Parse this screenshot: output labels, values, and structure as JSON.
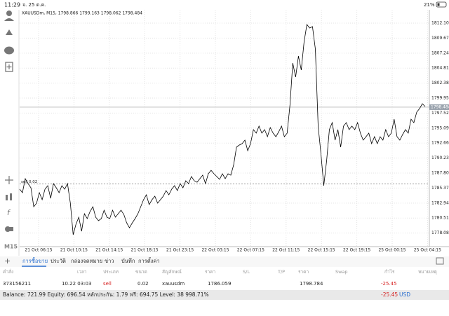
{
  "status_bar": {
    "time": "11:29",
    "date": "จ. 25 ต.ค.",
    "battery": "21%"
  },
  "timeframe": "M15",
  "chart": {
    "type": "line",
    "header": "XAUUSDm, M15, 1798.866 1799.163 1798.062 1798.484",
    "current_price": 1798.484,
    "order_label": "sell 0.02",
    "order_price": 1786.059,
    "ylim": [
      1775.88,
      1814.26
    ],
    "yticks": [
      {
        "value": 1812.1,
        "label": "1812.100"
      },
      {
        "value": 1809.67,
        "label": "1809.670"
      },
      {
        "value": 1807.24,
        "label": "1807.240"
      },
      {
        "value": 1804.81,
        "label": "1804.810"
      },
      {
        "value": 1802.38,
        "label": "1802.380"
      },
      {
        "value": 1799.95,
        "label": "1799.950"
      },
      {
        "value": 1797.52,
        "label": "1797.520"
      },
      {
        "value": 1795.09,
        "label": "1795.090"
      },
      {
        "value": 1792.66,
        "label": "1792.660"
      },
      {
        "value": 1790.23,
        "label": "1790.230"
      },
      {
        "value": 1787.8,
        "label": "1787.800"
      },
      {
        "value": 1785.37,
        "label": "1785.370"
      },
      {
        "value": 1782.94,
        "label": "1782.940"
      },
      {
        "value": 1780.51,
        "label": "1780.510"
      },
      {
        "value": 1778.08,
        "label": "1778.080"
      }
    ],
    "xticks": [
      "21 Oct 06:15",
      "21 Oct 10:15",
      "21 Oct 14:15",
      "21 Oct 18:15",
      "21 Oct 23:15",
      "22 Oct 03:15",
      "22 Oct 07:15",
      "22 Oct 11:15",
      "22 Oct 15:15",
      "22 Oct 19:15",
      "25 Oct 00:15",
      "25 Oct 04:15"
    ],
    "color": "#000000",
    "grid": true,
    "values": [
      1785.19,
      1784.62,
      1786.89,
      1786.1,
      1785.42,
      1782.35,
      1782.92,
      1784.62,
      1783.49,
      1785.19,
      1785.76,
      1783.71,
      1786.1,
      1785.42,
      1784.62,
      1785.76,
      1785.19,
      1786.1,
      1782.92,
      1777.81,
      1779.51,
      1780.65,
      1778.38,
      1781.22,
      1780.42,
      1781.56,
      1782.35,
      1780.65,
      1780.08,
      1780.42,
      1781.78,
      1780.65,
      1780.42,
      1781.78,
      1780.65,
      1781.22,
      1781.78,
      1781.1,
      1779.74,
      1778.94,
      1779.74,
      1780.42,
      1781.22,
      1782.35,
      1783.49,
      1784.28,
      1782.69,
      1783.49,
      1784.05,
      1782.92,
      1783.49,
      1784.05,
      1784.96,
      1784.28,
      1785.19,
      1785.76,
      1784.96,
      1786.1,
      1785.42,
      1786.55,
      1786.1,
      1787.23,
      1786.55,
      1786.32,
      1786.89,
      1787.46,
      1786.1,
      1787.69,
      1788.25,
      1787.69,
      1787.23,
      1786.78,
      1787.69,
      1786.89,
      1787.69,
      1787.46,
      1789.16,
      1792.0,
      1792.34,
      1792.57,
      1793.14,
      1791.43,
      1792.57,
      1794.84,
      1794.27,
      1795.41,
      1794.27,
      1794.84,
      1793.7,
      1795.18,
      1794.27,
      1793.7,
      1794.5,
      1795.41,
      1793.7,
      1794.27,
      1798.81,
      1805.63,
      1803.36,
      1806.76,
      1804.49,
      1809.03,
      1811.87,
      1811.31,
      1811.53,
      1807.9,
      1795.41,
      1790.87,
      1785.76,
      1789.73,
      1794.84,
      1795.98,
      1793.14,
      1794.84,
      1792.0,
      1795.41,
      1795.98,
      1794.84,
      1795.41,
      1794.84,
      1795.98,
      1794.27,
      1793.14,
      1793.7,
      1794.27,
      1792.57,
      1793.7,
      1792.57,
      1793.7,
      1793.14,
      1794.84,
      1793.7,
      1794.27,
      1796.54,
      1793.7,
      1793.14,
      1794.05,
      1794.84,
      1794.27,
      1796.54,
      1795.98,
      1797.68,
      1798.25,
      1799.04,
      1798.59
    ]
  },
  "tabs": [
    "การซื้อขาย",
    "ประวัติ",
    "กล่องจดหมาย",
    "ข่าว",
    "บันทึก",
    "การตั้งค่า"
  ],
  "table": {
    "headers": [
      "คำสั่ง",
      "เวลา",
      "ประเภท",
      "ขนาด",
      "สัญลักษณ์",
      "ราคา",
      "S/L",
      "T/P",
      "ราคา",
      "Swap",
      "กำไร",
      "หมายเหตุ"
    ],
    "row": {
      "order": "373156211",
      "time": "10.22 03:03",
      "type": "sell",
      "volume": "0.02",
      "symbol": "xauusdm",
      "open_price": "1786.059",
      "price": "1798.784",
      "profit": "-25.45"
    }
  },
  "summary": {
    "text": "Balance: 721.99 Equity: 696.54 หลักประกัน: 1.79 ฟรี: 694.75 Level: 38 998.71%",
    "profit": "-25.45",
    "currency": "USD"
  }
}
